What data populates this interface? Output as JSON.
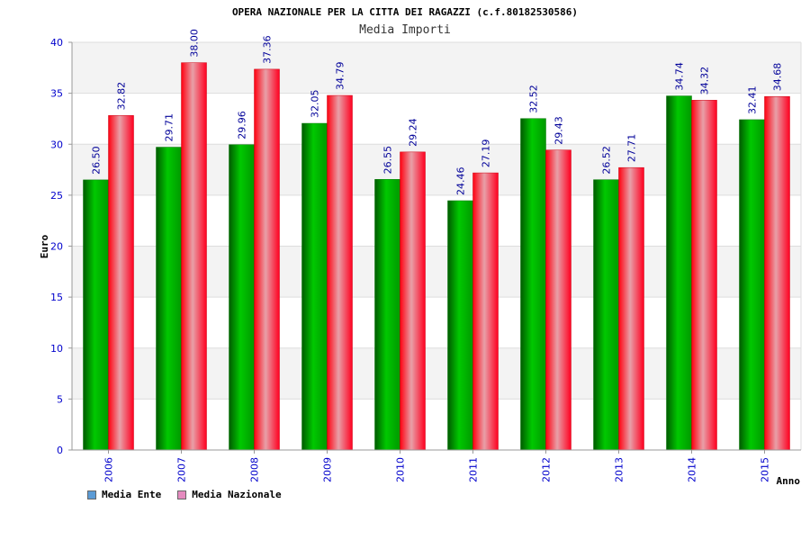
{
  "chart_data": {
    "type": "bar",
    "title": "OPERA NAZIONALE PER LA CITTA DEI RAGAZZI (c.f.80182530586)",
    "subtitle": "Media Importi",
    "xlabel": "Anno",
    "ylabel": "Euro",
    "ylim": [
      0,
      40
    ],
    "yticks": [
      "0",
      "5",
      "10",
      "15",
      "20",
      "25",
      "30",
      "35",
      "40"
    ],
    "categories": [
      "2006",
      "2007",
      "2008",
      "2009",
      "2010",
      "2011",
      "2012",
      "2013",
      "2014",
      "2015"
    ],
    "series": [
      {
        "name": "Media Ente",
        "color": "#00b000",
        "values": [
          26.5,
          29.71,
          29.96,
          32.05,
          26.55,
          24.46,
          32.52,
          26.52,
          34.74,
          32.41
        ],
        "labels": [
          "26.50",
          "29.71",
          "29.96",
          "32.05",
          "26.55",
          "24.46",
          "32.52",
          "26.52",
          "34.74",
          "32.41"
        ]
      },
      {
        "name": "Media Nazionale",
        "color": "#ff0020",
        "values": [
          32.82,
          38.0,
          37.36,
          34.79,
          29.24,
          27.19,
          29.43,
          27.71,
          34.32,
          34.68
        ],
        "labels": [
          "32.82",
          "38.00",
          "37.36",
          "34.79",
          "29.24",
          "27.19",
          "29.43",
          "27.71",
          "34.32",
          "34.68"
        ]
      }
    ],
    "legend": {
      "position": "bottom-left",
      "items": [
        {
          "label": "Media Ente",
          "color": "#5b9bd5"
        },
        {
          "label": "Media Nazionale",
          "color": "#e58bbf"
        }
      ]
    },
    "grid": true,
    "band_colors": [
      "#f3f3f3",
      "#ffffff"
    ],
    "tick_color": "#0000cc",
    "value_label_color": "#000099"
  }
}
